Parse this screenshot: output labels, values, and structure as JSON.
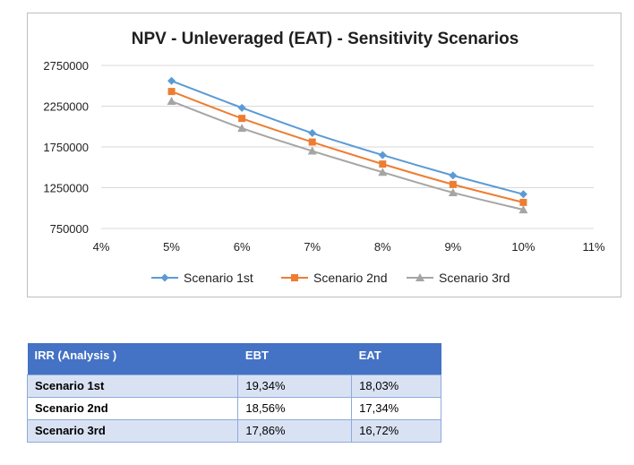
{
  "chart_data": {
    "type": "line",
    "title": "NPV - Unleveraged (EAT) - Sensitivity Scenarios",
    "x": [
      0.05,
      0.06,
      0.07,
      0.08,
      0.09,
      0.1
    ],
    "x_ticks": [
      "4%",
      "5%",
      "6%",
      "7%",
      "8%",
      "9%",
      "10%",
      "11%"
    ],
    "x_tick_values": [
      0.04,
      0.05,
      0.06,
      0.07,
      0.08,
      0.09,
      0.1,
      0.11
    ],
    "xlim": [
      0.04,
      0.11
    ],
    "y_ticks": [
      "2750000",
      "2250000",
      "1750000",
      "1250000",
      "750000"
    ],
    "y_tick_values": [
      2750000,
      2250000,
      1750000,
      1250000,
      750000
    ],
    "ylim": [
      750000,
      2750000
    ],
    "grid": true,
    "legend_position": "bottom",
    "series": [
      {
        "name": "Scenario 1st",
        "color": "#5b9bd5",
        "marker": "diamond",
        "values": [
          2560000,
          2230000,
          1920000,
          1650000,
          1400000,
          1170000
        ]
      },
      {
        "name": "Scenario 2nd",
        "color": "#ed7d31",
        "marker": "square",
        "values": [
          2430000,
          2100000,
          1810000,
          1540000,
          1290000,
          1070000
        ]
      },
      {
        "name": "Scenario 3rd",
        "color": "#a5a5a5",
        "marker": "triangle",
        "values": [
          2310000,
          1980000,
          1700000,
          1440000,
          1190000,
          980000
        ]
      }
    ]
  },
  "irr_table": {
    "headers": [
      "IRR (Analysis )",
      "EBT",
      "EAT"
    ],
    "rows": [
      {
        "label": "Scenario 1st",
        "ebt": "19,34%",
        "eat": "18,03%"
      },
      {
        "label": "Scenario 2nd",
        "ebt": "18,56%",
        "eat": "17,34%"
      },
      {
        "label": "Scenario 3rd",
        "ebt": "17,86%",
        "eat": "16,72%"
      }
    ]
  }
}
